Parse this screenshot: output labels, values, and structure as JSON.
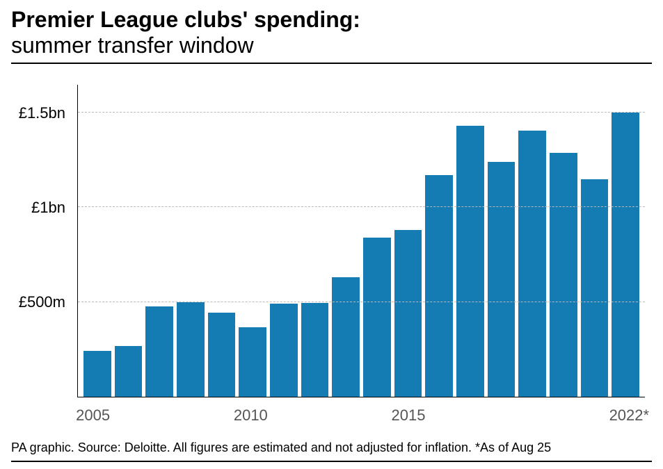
{
  "title_bold": "Premier League clubs' spending:",
  "title_sub": "summer transfer window",
  "title_fontsize": 32,
  "title_color": "#000000",
  "title_rule_color": "#000000",
  "title_rule_width": 2,
  "chart": {
    "type": "bar",
    "background_color": "#ffffff",
    "bar_color": "#147cb3",
    "axis_color": "#000000",
    "axis_width": 1.5,
    "grid_color": "#b9b9b9",
    "grid_dash": "dashed",
    "ylim": [
      0,
      1650
    ],
    "yticks": [
      {
        "value": 500,
        "label": "£500m"
      },
      {
        "value": 1000,
        "label": "£1bn"
      },
      {
        "value": 1500,
        "label": "£1.5bn"
      }
    ],
    "ytick_fontsize": 22,
    "ytick_color": "#000000",
    "xticks": [
      {
        "index": 0,
        "label": "2005"
      },
      {
        "index": 5,
        "label": "2010"
      },
      {
        "index": 10,
        "label": "2015"
      },
      {
        "index": 17,
        "label": "2022*"
      }
    ],
    "xtick_fontsize": 22,
    "xtick_color": "#555555",
    "categories": [
      "2005",
      "2006",
      "2007",
      "2008",
      "2009",
      "2010",
      "2011",
      "2012",
      "2013",
      "2014",
      "2015",
      "2016",
      "2017",
      "2018",
      "2019",
      "2020",
      "2021",
      "2022"
    ],
    "values": [
      240,
      265,
      475,
      500,
      445,
      365,
      490,
      495,
      630,
      840,
      880,
      1170,
      1430,
      1240,
      1405,
      1290,
      1150,
      1500
    ],
    "bar_gap_ratio": 0.12
  },
  "footer": {
    "text": "PA graphic. Source: Deloitte. All figures are estimated and not adjusted for inflation. *As of Aug 25",
    "fontsize": 18,
    "color": "#000000",
    "rule_color": "#000000",
    "rule_width": 2
  }
}
